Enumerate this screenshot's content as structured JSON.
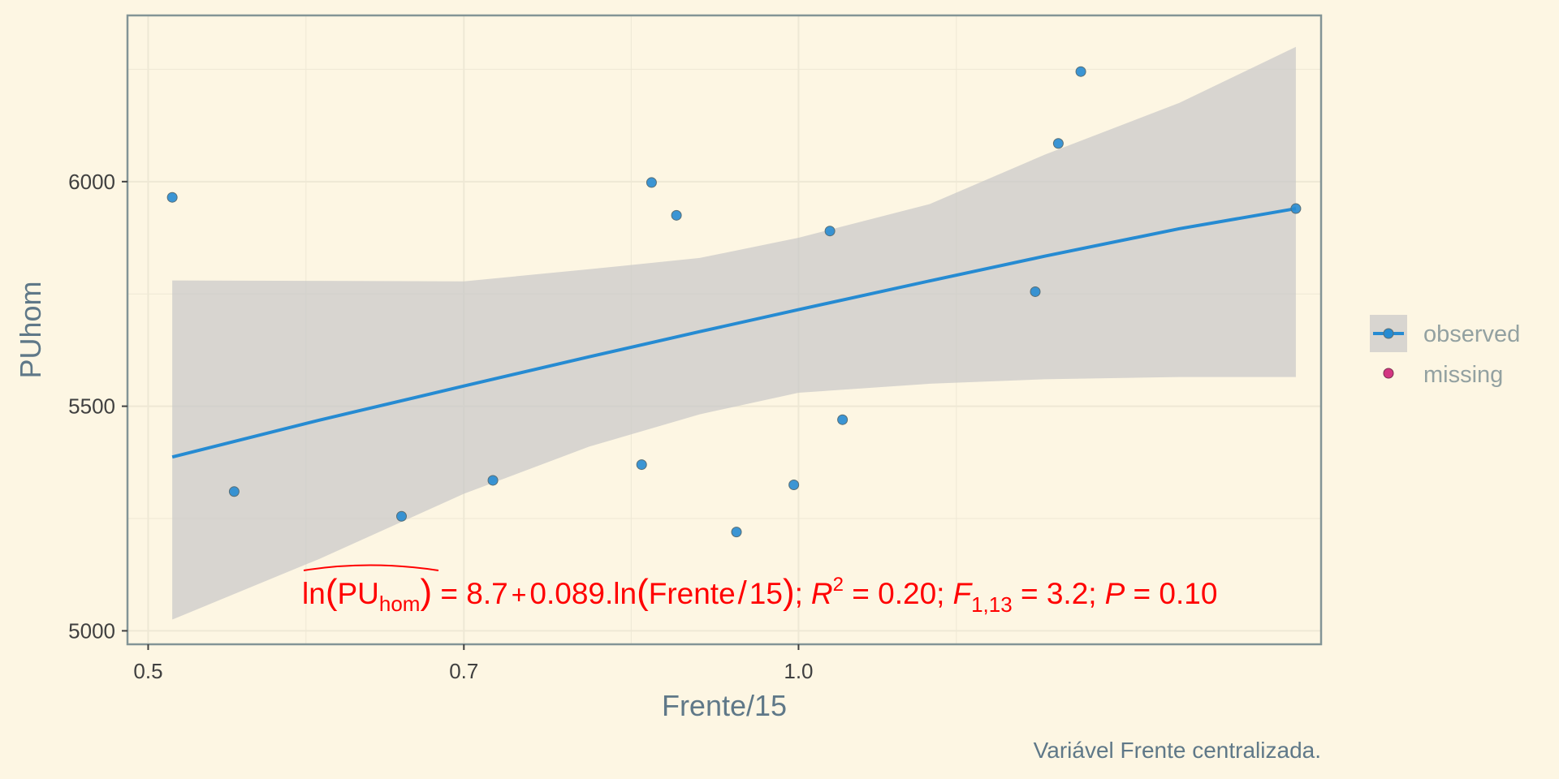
{
  "chart_data": {
    "type": "scatter",
    "xlabel": "Frente/15",
    "ylabel": "PUhom",
    "x_scale": "log",
    "xlim": [
      0.4891,
      1.7453
    ],
    "ylim": [
      4970,
      6370
    ],
    "x_ticks": [
      0.5,
      0.7,
      1.0
    ],
    "x_tick_labels": [
      "0.5",
      "0.7",
      "1.0"
    ],
    "y_ticks": [
      5000,
      5500,
      6000
    ],
    "y_tick_labels": [
      "5000",
      "5500",
      "6000"
    ],
    "grid": true,
    "legend": {
      "position": "right",
      "entries": [
        {
          "label": "observed",
          "color": "#268bd2",
          "line": true
        },
        {
          "label": "missing",
          "color": "#d33682",
          "line": false
        }
      ]
    },
    "series": [
      {
        "name": "observed",
        "color": "#268bd2",
        "points": [
          {
            "x": 0.513,
            "y": 5965
          },
          {
            "x": 0.548,
            "y": 5310
          },
          {
            "x": 0.655,
            "y": 5255
          },
          {
            "x": 0.722,
            "y": 5335
          },
          {
            "x": 0.846,
            "y": 5370
          },
          {
            "x": 0.855,
            "y": 5998
          },
          {
            "x": 0.878,
            "y": 5925
          },
          {
            "x": 0.936,
            "y": 5220
          },
          {
            "x": 0.995,
            "y": 5325
          },
          {
            "x": 1.034,
            "y": 5890
          },
          {
            "x": 1.048,
            "y": 5470
          },
          {
            "x": 1.287,
            "y": 5755
          },
          {
            "x": 1.319,
            "y": 6085
          },
          {
            "x": 1.351,
            "y": 6245
          },
          {
            "x": 1.699,
            "y": 5940
          }
        ]
      }
    ],
    "trend": {
      "color": "#268bd2",
      "fit": [
        {
          "x": 0.513,
          "y": 5387
        },
        {
          "x": 0.6,
          "y": 5469
        },
        {
          "x": 0.7,
          "y": 5545
        },
        {
          "x": 0.8,
          "y": 5610
        },
        {
          "x": 0.9,
          "y": 5666
        },
        {
          "x": 1.0,
          "y": 5715
        },
        {
          "x": 1.15,
          "y": 5779
        },
        {
          "x": 1.3,
          "y": 5834
        },
        {
          "x": 1.5,
          "y": 5895
        },
        {
          "x": 1.699,
          "y": 5940
        }
      ],
      "upper": [
        {
          "x": 0.513,
          "y": 5780
        },
        {
          "x": 0.6,
          "y": 5779
        },
        {
          "x": 0.7,
          "y": 5778
        },
        {
          "x": 0.8,
          "y": 5805
        },
        {
          "x": 0.9,
          "y": 5830
        },
        {
          "x": 1.0,
          "y": 5875
        },
        {
          "x": 1.15,
          "y": 5950
        },
        {
          "x": 1.3,
          "y": 6060
        },
        {
          "x": 1.5,
          "y": 6175
        },
        {
          "x": 1.699,
          "y": 6300
        }
      ],
      "lower": [
        {
          "x": 0.513,
          "y": 5025
        },
        {
          "x": 0.6,
          "y": 5160
        },
        {
          "x": 0.7,
          "y": 5305
        },
        {
          "x": 0.8,
          "y": 5410
        },
        {
          "x": 0.9,
          "y": 5482
        },
        {
          "x": 1.0,
          "y": 5530
        },
        {
          "x": 1.15,
          "y": 5550
        },
        {
          "x": 1.3,
          "y": 5560
        },
        {
          "x": 1.5,
          "y": 5565
        },
        {
          "x": 1.699,
          "y": 5565
        }
      ],
      "band_color": "#c8c8c8"
    },
    "annotation": {
      "color": "#ff0000",
      "lhs_fn": "ln",
      "lhs_var": "PU",
      "lhs_sub": "hom",
      "eq_sign": " = ",
      "intercept": "8.7",
      "plus": "+",
      "slope": "0.089",
      "rhs_fn": ".ln",
      "rhs_var": "Frente",
      "rhs_div": "/",
      "rhs_den": "15",
      "sep": ";",
      "r2_label": "R",
      "r2_sup": "2",
      "r2_value": " = 0.20",
      "f_label": "F",
      "f_sub": "1,13",
      "f_value": " = 3.2",
      "p_label": "P",
      "p_value": " = 0.10"
    },
    "caption": "Variável Frente centralizada."
  },
  "colors": {
    "background": "#fdf6e3",
    "panel_border": "#839496",
    "grid_major": "#eee8d5",
    "point": "#268bd2",
    "point_stroke": "#586e75",
    "missing": "#d33682"
  }
}
